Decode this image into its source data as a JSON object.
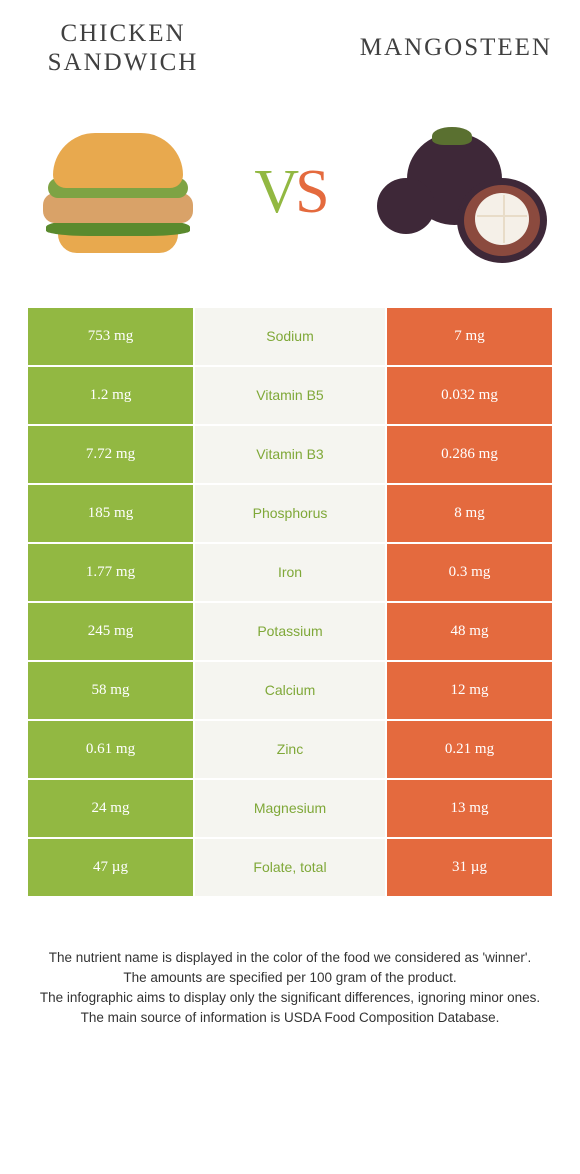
{
  "header": {
    "left_title_line1": "CHICKEN",
    "left_title_line2": "SANDWICH",
    "right_title": "MANGOSTEEN"
  },
  "vs": {
    "v": "V",
    "s": "S"
  },
  "colors": {
    "left": "#92b842",
    "right": "#e46a3e",
    "mid_bg": "#f5f5f0",
    "green_text": "#7fa838",
    "orange_text": "#d95b32"
  },
  "rows": [
    {
      "left": "753 mg",
      "label": "Sodium",
      "right": "7 mg",
      "winner": "green"
    },
    {
      "left": "1.2 mg",
      "label": "Vitamin B5",
      "right": "0.032 mg",
      "winner": "green"
    },
    {
      "left": "7.72 mg",
      "label": "Vitamin B3",
      "right": "0.286 mg",
      "winner": "green"
    },
    {
      "left": "185 mg",
      "label": "Phosphorus",
      "right": "8 mg",
      "winner": "green"
    },
    {
      "left": "1.77 mg",
      "label": "Iron",
      "right": "0.3 mg",
      "winner": "green"
    },
    {
      "left": "245 mg",
      "label": "Potassium",
      "right": "48 mg",
      "winner": "green"
    },
    {
      "left": "58 mg",
      "label": "Calcium",
      "right": "12 mg",
      "winner": "green"
    },
    {
      "left": "0.61 mg",
      "label": "Zinc",
      "right": "0.21 mg",
      "winner": "green"
    },
    {
      "left": "24 mg",
      "label": "Magnesium",
      "right": "13 mg",
      "winner": "green"
    },
    {
      "left": "47 µg",
      "label": "Folate, total",
      "right": "31 µg",
      "winner": "green"
    }
  ],
  "footer": {
    "line1": "The nutrient name is displayed in the color of the food we considered as 'winner'.",
    "line2": "The amounts are specified per 100 gram of the product.",
    "line3": "The infographic aims to display only the significant differences, ignoring minor ones.",
    "line4": "The main source of information is USDA Food Composition Database."
  }
}
